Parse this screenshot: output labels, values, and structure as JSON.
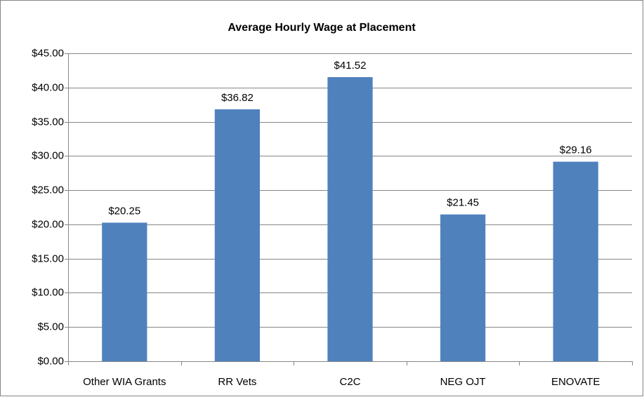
{
  "chart_data": {
    "type": "bar",
    "title": "Average Hourly Wage at Placement",
    "categories": [
      "Other WIA Grants",
      "RR Vets",
      "C2C",
      "NEG OJT",
      "ENOVATE"
    ],
    "values": [
      20.25,
      36.82,
      41.52,
      21.45,
      29.16
    ],
    "value_labels": [
      "$20.25",
      "$36.82",
      "$41.52",
      "$21.45",
      "$29.16"
    ],
    "color": "#4f81bd",
    "ylim": [
      0,
      45
    ],
    "yticks": [
      {
        "value": 0,
        "label": "$0.00"
      },
      {
        "value": 5,
        "label": "$5.00"
      },
      {
        "value": 10,
        "label": "$10.00"
      },
      {
        "value": 15,
        "label": "$15.00"
      },
      {
        "value": 20,
        "label": "$20.00"
      },
      {
        "value": 25,
        "label": "$25.00"
      },
      {
        "value": 30,
        "label": "$30.00"
      },
      {
        "value": 35,
        "label": "$35.00"
      },
      {
        "value": 40,
        "label": "$40.00"
      },
      {
        "value": 45,
        "label": "$45.00"
      }
    ],
    "grid": true
  }
}
